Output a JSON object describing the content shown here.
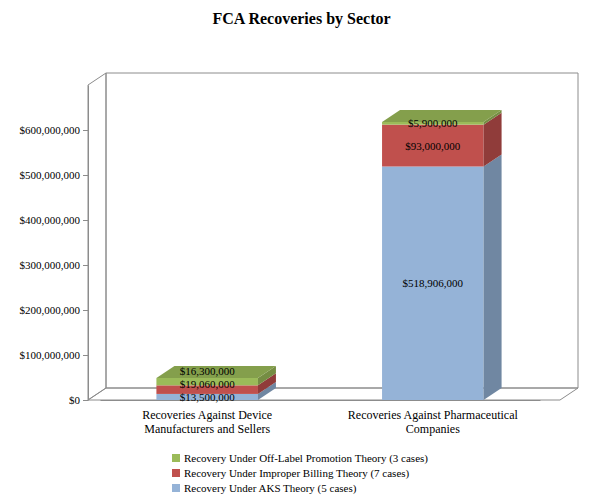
{
  "chart_data": {
    "type": "bar",
    "title": "FCA Recoveries by Sector",
    "categories": [
      "Recoveries Against Device Manufacturers and Sellers",
      "Recoveries Against Pharmaceutical Companies"
    ],
    "series": [
      {
        "name": "Recovery Under AKS Theory (5 cases)",
        "color": "#95b3d7",
        "values": [
          13500000,
          518906000
        ],
        "value_labels": [
          "$13,500,000",
          "$518,906,000"
        ]
      },
      {
        "name": "Recovery Under Improper Billing Theory (7 cases)",
        "color": "#c0504d",
        "values": [
          19060000,
          93000000
        ],
        "value_labels": [
          "$19,060,000",
          "$93,000,000"
        ]
      },
      {
        "name": "Recovery Under Off-Label Promotion Theory (3 cases)",
        "color": "#9bbb59",
        "values": [
          16300000,
          5900000
        ],
        "value_labels": [
          "$16,300,000",
          "$5,900,000"
        ]
      }
    ],
    "stacked": true,
    "data_labels": true,
    "grid": false,
    "legend": "bottom",
    "ylim": [
      0,
      700000000
    ],
    "yticks": [
      {
        "value": 0,
        "label": "$0"
      },
      {
        "value": 100000000,
        "label": "$100,000,000"
      },
      {
        "value": 200000000,
        "label": "$200,000,000"
      },
      {
        "value": 300000000,
        "label": "$300,000,000"
      },
      {
        "value": 400000000,
        "label": "$400,000,000"
      },
      {
        "value": 500000000,
        "label": "$500,000,000"
      },
      {
        "value": 600000000,
        "label": "$600,000,000"
      }
    ]
  }
}
